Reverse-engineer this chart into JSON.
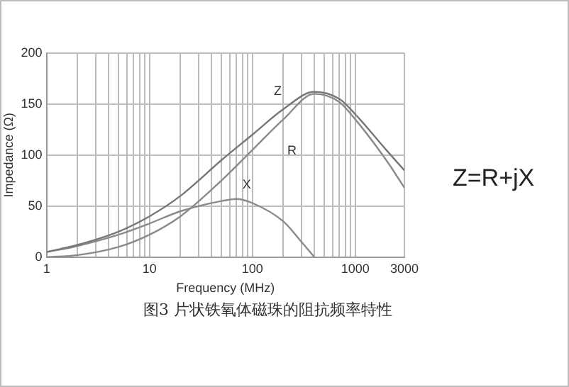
{
  "chart_data": {
    "type": "line",
    "xlabel": "Frequency (MHz)",
    "ylabel": "Impedance (Ω)",
    "annotations": [
      "Z=R+jX",
      "图3 片状铁氧体磁珠的阻抗频率特性"
    ],
    "log": "x",
    "grid": true,
    "legend": false,
    "marker": "none",
    "line_style": "solid",
    "xlim": [
      1,
      3000
    ],
    "ylim": [
      0,
      200
    ],
    "xticks": [
      1,
      {
        "value": 2,
        "label": null
      },
      {
        "value": 3,
        "label": null
      },
      {
        "value": 4,
        "label": null
      },
      {
        "value": 5,
        "label": null
      },
      {
        "value": 6,
        "label": null
      },
      {
        "value": 7,
        "label": null
      },
      {
        "value": 8,
        "label": null
      },
      {
        "value": 9,
        "label": null
      },
      10,
      {
        "value": 20,
        "label": null
      },
      {
        "value": 30,
        "label": null
      },
      {
        "value": 40,
        "label": null
      },
      {
        "value": 50,
        "label": null
      },
      {
        "value": 60,
        "label": null
      },
      {
        "value": 70,
        "label": null
      },
      {
        "value": 80,
        "label": null
      },
      {
        "value": 90,
        "label": null
      },
      100,
      {
        "value": 200,
        "label": null
      },
      {
        "value": 300,
        "label": null
      },
      {
        "value": 400,
        "label": null
      },
      {
        "value": 500,
        "label": null
      },
      {
        "value": 600,
        "label": null
      },
      {
        "value": 700,
        "label": null
      },
      {
        "value": 800,
        "label": null
      },
      {
        "value": 900,
        "label": null
      },
      1000,
      3000
    ],
    "yticks": [
      0,
      50,
      100,
      150,
      200
    ],
    "series": [
      {
        "name": "Z",
        "color": "#777777",
        "x": [
          1,
          2,
          5,
          10,
          20,
          50,
          100,
          200,
          400,
          700,
          1000,
          2000,
          3000
        ],
        "values": [
          5,
          12,
          25,
          40,
          60,
          95,
          120,
          145,
          162,
          155,
          140,
          105,
          85
        ]
      },
      {
        "name": "R",
        "color": "#8a8a8a",
        "x": [
          1,
          2,
          5,
          10,
          20,
          50,
          100,
          200,
          400,
          700,
          1000,
          2000,
          3000
        ],
        "values": [
          0,
          2,
          10,
          22,
          40,
          75,
          105,
          135,
          160,
          152,
          135,
          95,
          68
        ]
      },
      {
        "name": "X",
        "color": "#8a8a8a",
        "x": [
          1,
          2,
          5,
          10,
          20,
          50,
          70,
          100,
          200,
          300,
          400
        ],
        "values": [
          5,
          11,
          22,
          33,
          45,
          55,
          57,
          53,
          35,
          15,
          0
        ]
      }
    ]
  }
}
